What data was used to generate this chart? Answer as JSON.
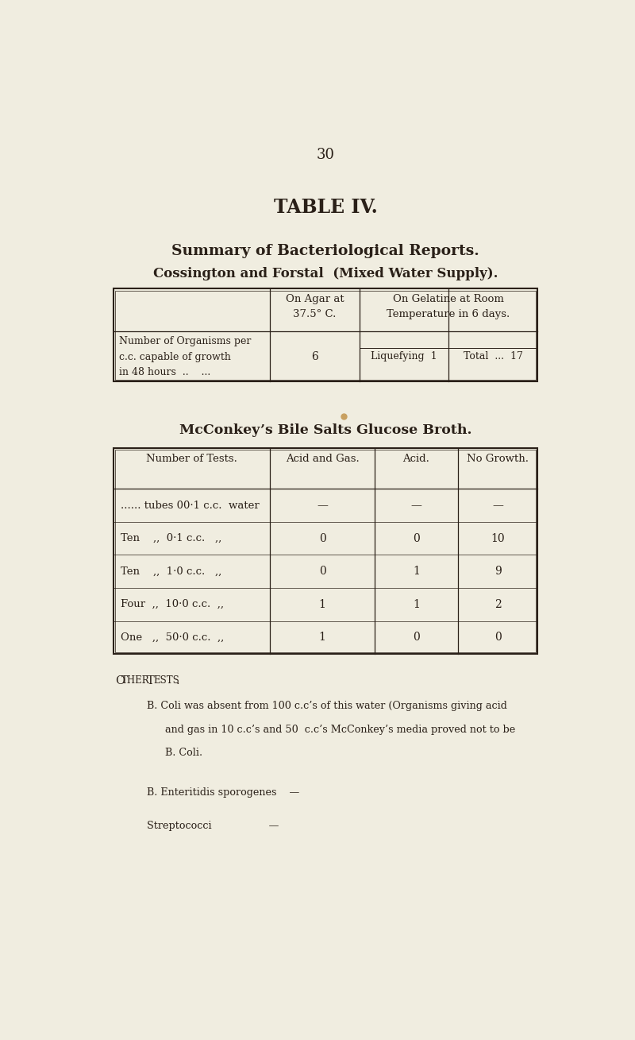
{
  "bg_color": "#f0ede0",
  "text_color": "#2a2018",
  "page_number": "30",
  "title": "TABLE IV.",
  "subtitle1": "Summary of Bacteriological Reports.",
  "subtitle2": "Cossington and Forstal  (Mixed Water Supply).",
  "table1_header_col1": "On Agar at\n37.5° C.",
  "table1_header_col2": "On Gelatine at Room\nTemperature in 6 days.",
  "table1_row_label": "Number of Organisms per\nc.c. capable of growth\nin 48 hours  ..    ...",
  "table1_row_val1": "6",
  "table1_sub1": "Liquefying  1",
  "table1_sub2": "Total  ...  17",
  "mcconkey_title": "McConkey’s Bile Salts Glucose Broth.",
  "table2_headers": [
    "Number of Tests.",
    "Acid and Gas.",
    "Acid.",
    "No Growth."
  ],
  "table2_rows": [
    [
      "...... tubes 00·1 c.c.  water",
      "—",
      "—",
      "—"
    ],
    [
      "Ten    ,,  0·1 c.c.   ,,",
      "0",
      "0",
      "10"
    ],
    [
      "Ten    ,,  1·0 c.c.   ,,",
      "0",
      "1",
      "9"
    ],
    [
      "Four  ,,  10·0 c.c.  ,,",
      "1",
      "1",
      "2"
    ],
    [
      "One   ,,  50·0 c.c.  ,,",
      "1",
      "0",
      "0"
    ]
  ],
  "other_tests_title": "Other Tests.",
  "bcoli_line1": "B. Coli was absent from 100 c.c’s of this water (Organisms giving acid",
  "bcoli_line2": "and gas in 10 c.c’s and 50  c.c’s McConkey’s media proved not to be",
  "bcoli_line3": "B. Coli.",
  "enteritidis_text": "B. Enteritidis sporogenes    —",
  "streptococci_text": "Streptococci                  —",
  "dot_color": "#c8a060"
}
